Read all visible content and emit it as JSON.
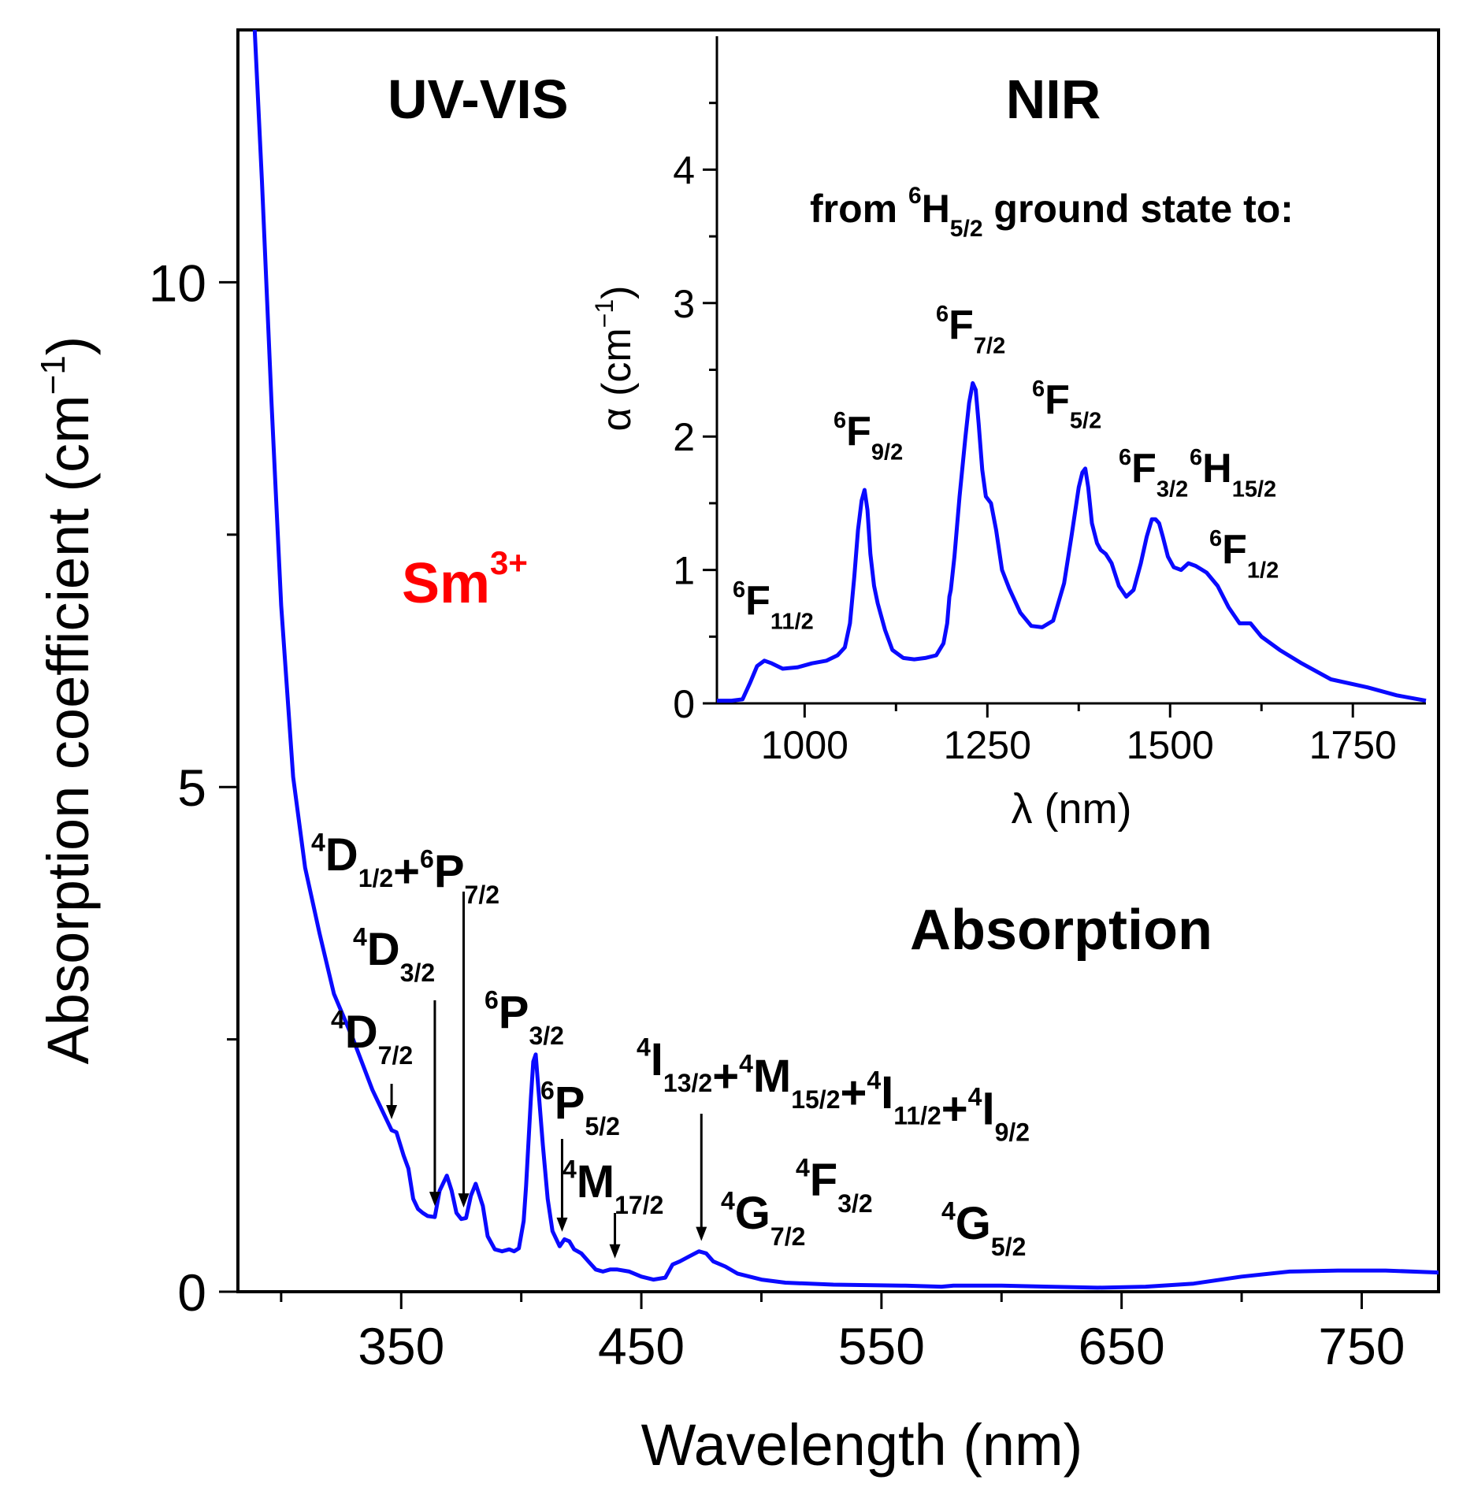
{
  "chart_data": [
    {
      "id": "main",
      "type": "line",
      "title": "",
      "xlabel": "Wavelength (nm)",
      "ylabel_base": "Absorption coefficient (cm",
      "ylabel_sup": "−1",
      "ylabel_close": ")",
      "xlim": [
        282,
        782
      ],
      "ylim": [
        0,
        12.5
      ],
      "grid": false,
      "x_ticks": [
        350,
        450,
        550,
        650,
        750
      ],
      "x_minor_ticks": [
        300,
        400,
        500,
        600,
        700
      ],
      "y_ticks": [
        0,
        5,
        10
      ],
      "y_minor_ticks": [
        2.5,
        7.5
      ],
      "line_color": "#0a0aff",
      "series": [
        {
          "name": "UV-VIS absorption",
          "x": [
            289,
            292,
            296,
            300,
            305,
            310,
            316,
            322,
            330,
            338,
            343,
            346,
            348,
            351,
            353,
            355,
            357,
            359,
            361,
            364,
            366,
            369,
            371,
            373,
            375,
            377,
            379,
            381,
            384,
            386,
            389,
            392,
            395,
            397,
            399,
            401,
            402,
            403,
            404,
            405,
            406,
            407,
            409,
            411,
            413,
            416,
            418,
            420,
            422,
            425,
            428,
            431,
            434,
            437,
            440,
            445,
            450,
            455,
            460,
            463,
            466,
            470,
            474,
            477,
            480,
            485,
            490,
            500,
            510,
            530,
            560,
            575,
            580,
            600,
            620,
            640,
            660,
            680,
            700,
            720,
            740,
            760,
            782
          ],
          "y": [
            12.5,
            11.0,
            8.8,
            6.8,
            5.1,
            4.2,
            3.55,
            2.95,
            2.5,
            2.0,
            1.75,
            1.6,
            1.58,
            1.35,
            1.22,
            0.92,
            0.82,
            0.78,
            0.75,
            0.74,
            1.0,
            1.15,
            1.0,
            0.78,
            0.72,
            0.73,
            0.95,
            1.07,
            0.85,
            0.55,
            0.42,
            0.4,
            0.42,
            0.4,
            0.43,
            0.7,
            1.05,
            1.48,
            1.92,
            2.28,
            2.35,
            2.05,
            1.45,
            0.92,
            0.6,
            0.45,
            0.52,
            0.5,
            0.42,
            0.38,
            0.3,
            0.22,
            0.2,
            0.22,
            0.22,
            0.2,
            0.15,
            0.12,
            0.14,
            0.27,
            0.3,
            0.35,
            0.4,
            0.38,
            0.3,
            0.25,
            0.18,
            0.12,
            0.09,
            0.07,
            0.06,
            0.05,
            0.06,
            0.06,
            0.05,
            0.04,
            0.05,
            0.08,
            0.15,
            0.2,
            0.21,
            0.21,
            0.19
          ]
        }
      ],
      "annotations": {
        "panel_label": "UV-VIS",
        "ion": {
          "base": "Sm",
          "sup": "3+",
          "color": "#ff0000"
        },
        "band_label": "Absorption",
        "transitions": [
          {
            "label": "4D7/2",
            "parts": [
              {
                "sup": "4",
                "main": "D",
                "sub": "7/2"
              }
            ],
            "x": 346
          },
          {
            "label": "4D3/2",
            "parts": [
              {
                "sup": "4",
                "main": "D",
                "sub": "3/2"
              }
            ],
            "x": 364
          },
          {
            "label": "4D1/2+6P7/2",
            "parts": [
              {
                "sup": "4",
                "main": "D",
                "sub": "1/2"
              },
              {
                "op": "+"
              },
              {
                "sup": "6",
                "main": "P",
                "sub": "7/2"
              }
            ],
            "x": 376
          },
          {
            "label": "6P3/2",
            "parts": [
              {
                "sup": "6",
                "main": "P",
                "sub": "3/2"
              }
            ],
            "x": null
          },
          {
            "label": "6P5/2",
            "parts": [
              {
                "sup": "6",
                "main": "P",
                "sub": "5/2"
              }
            ],
            "x": 417
          },
          {
            "label": "4M17/2",
            "parts": [
              {
                "sup": "4",
                "main": "M",
                "sub": "17/2"
              }
            ],
            "x": 439
          },
          {
            "label": "4I13/2+4M15/2+4I11/2+4I9/2",
            "parts": [
              {
                "sup": "4",
                "main": "I",
                "sub": "13/2"
              },
              {
                "op": "+"
              },
              {
                "sup": "4",
                "main": "M",
                "sub": "15/2"
              },
              {
                "op": "+"
              },
              {
                "sup": "4",
                "main": "I",
                "sub": "11/2"
              },
              {
                "op": "+"
              },
              {
                "sup": "4",
                "main": "I",
                "sub": "9/2"
              }
            ],
            "x": 475
          },
          {
            "label": "4G7/2",
            "parts": [
              {
                "sup": "4",
                "main": "G",
                "sub": "7/2"
              }
            ],
            "x": null
          },
          {
            "label": "4F3/2",
            "parts": [
              {
                "sup": "4",
                "main": "F",
                "sub": "3/2"
              }
            ],
            "x": null
          },
          {
            "label": "4G5/2",
            "parts": [
              {
                "sup": "4",
                "main": "G",
                "sub": "5/2"
              }
            ],
            "x": null
          }
        ]
      }
    },
    {
      "id": "inset",
      "type": "line",
      "title": "NIR",
      "xlabel": "λ (nm)",
      "ylabel_base": "α (cm",
      "ylabel_sup": "−1",
      "ylabel_close": ")",
      "xlim": [
        880,
        1850
      ],
      "ylim": [
        0,
        5
      ],
      "grid": false,
      "x_ticks": [
        1000,
        1250,
        1500,
        1750
      ],
      "x_minor_ticks": [
        1125,
        1375,
        1625
      ],
      "y_ticks": [
        0,
        1,
        2,
        3,
        4
      ],
      "y_minor_ticks": [
        0.5,
        1.5,
        2.5,
        3.5,
        4.5
      ],
      "line_color": "#0a0aff",
      "series": [
        {
          "name": "NIR absorption",
          "x": [
            880,
            900,
            915,
            925,
            935,
            945,
            955,
            970,
            990,
            1010,
            1030,
            1045,
            1055,
            1062,
            1068,
            1073,
            1078,
            1082,
            1086,
            1090,
            1095,
            1100,
            1110,
            1120,
            1135,
            1150,
            1165,
            1180,
            1190,
            1195,
            1198,
            1200,
            1205,
            1212,
            1220,
            1225,
            1230,
            1234,
            1238,
            1243,
            1248,
            1255,
            1262,
            1270,
            1280,
            1295,
            1310,
            1325,
            1340,
            1355,
            1365,
            1375,
            1380,
            1384,
            1388,
            1393,
            1400,
            1405,
            1412,
            1420,
            1430,
            1440,
            1450,
            1460,
            1468,
            1475,
            1480,
            1485,
            1490,
            1497,
            1505,
            1515,
            1525,
            1535,
            1550,
            1565,
            1580,
            1595,
            1610,
            1625,
            1650,
            1680,
            1720,
            1770,
            1810,
            1850
          ],
          "y": [
            0.02,
            0.02,
            0.03,
            0.15,
            0.28,
            0.32,
            0.3,
            0.26,
            0.27,
            0.3,
            0.32,
            0.36,
            0.42,
            0.6,
            0.95,
            1.3,
            1.52,
            1.6,
            1.45,
            1.12,
            0.88,
            0.75,
            0.55,
            0.4,
            0.34,
            0.33,
            0.34,
            0.36,
            0.45,
            0.6,
            0.8,
            0.85,
            1.1,
            1.55,
            2.0,
            2.25,
            2.4,
            2.35,
            2.1,
            1.75,
            1.55,
            1.5,
            1.3,
            1.0,
            0.86,
            0.68,
            0.58,
            0.57,
            0.62,
            0.9,
            1.25,
            1.62,
            1.73,
            1.76,
            1.62,
            1.35,
            1.2,
            1.15,
            1.12,
            1.05,
            0.88,
            0.8,
            0.85,
            1.05,
            1.25,
            1.38,
            1.38,
            1.35,
            1.25,
            1.1,
            1.02,
            1.0,
            1.05,
            1.03,
            0.98,
            0.88,
            0.72,
            0.6,
            0.6,
            0.5,
            0.4,
            0.3,
            0.18,
            0.12,
            0.06,
            0.02
          ]
        }
      ],
      "annotations": {
        "subtitle_parts": {
          "prefix": "from ",
          "sup": "6",
          "main": "H",
          "sub": "5/2",
          "suffix": " ground state to:"
        },
        "transitions": [
          {
            "label": "6F11/2",
            "parts": [
              {
                "sup": "6",
                "main": "F",
                "sub": "11/2"
              }
            ]
          },
          {
            "label": "6F9/2",
            "parts": [
              {
                "sup": "6",
                "main": "F",
                "sub": "9/2"
              }
            ]
          },
          {
            "label": "6F7/2",
            "parts": [
              {
                "sup": "6",
                "main": "F",
                "sub": "7/2"
              }
            ]
          },
          {
            "label": "6F5/2",
            "parts": [
              {
                "sup": "6",
                "main": "F",
                "sub": "5/2"
              }
            ]
          },
          {
            "label": "6F3/2",
            "parts": [
              {
                "sup": "6",
                "main": "F",
                "sub": "3/2"
              }
            ]
          },
          {
            "label": "6H15/2",
            "parts": [
              {
                "sup": "6",
                "main": "H",
                "sub": "15/2"
              }
            ]
          },
          {
            "label": "6F1/2",
            "parts": [
              {
                "sup": "6",
                "main": "F",
                "sub": "1/2"
              }
            ]
          }
        ]
      }
    }
  ]
}
